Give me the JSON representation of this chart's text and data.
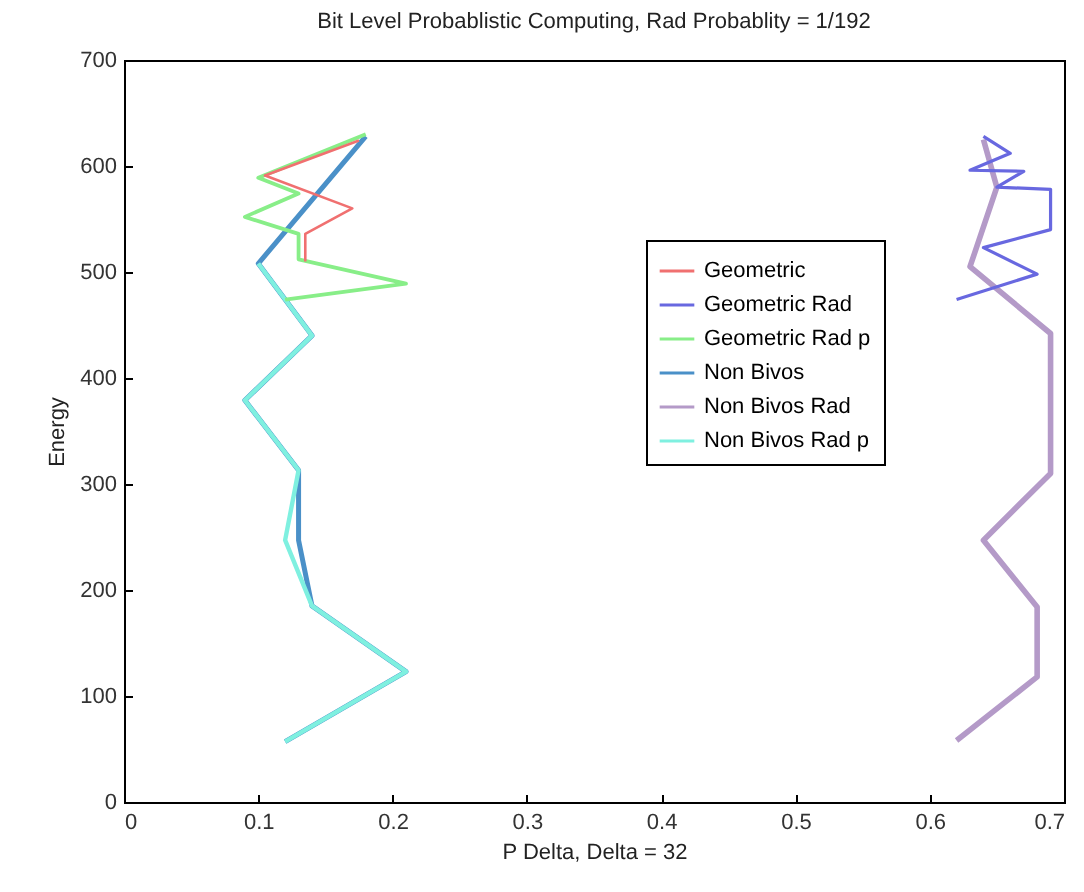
{
  "chart_data": {
    "type": "line",
    "title": "Bit Level Probablistic Computing, Rad  Probablity = 1/192",
    "xlabel": "P Delta, Delta = 32",
    "ylabel": "Energy",
    "xlim": [
      0,
      0.7
    ],
    "xticks": [
      0,
      0.1,
      0.2,
      0.3,
      0.4,
      0.5,
      0.6,
      0.7
    ],
    "ylim": [
      0,
      700
    ],
    "yticks": [
      0,
      100,
      200,
      300,
      400,
      500,
      600,
      700
    ],
    "grid": false,
    "legend": "top right",
    "marker": "none",
    "line_style": "solid",
    "series": [
      {
        "name": "Geometric",
        "color": "#f07070",
        "x": [
          0.135,
          0.135,
          0.17,
          0.105,
          0.175
        ],
        "values": [
          510,
          536,
          560,
          591,
          624
        ]
      },
      {
        "name": "Geometric Rad",
        "color": "#6868e0",
        "x": [
          0.62,
          0.68,
          0.64,
          0.69,
          0.69,
          0.65,
          0.67,
          0.63,
          0.66,
          0.64
        ],
        "values": [
          474,
          498,
          523,
          540,
          578,
          580,
          595,
          596,
          612,
          628
        ]
      },
      {
        "name": "Geometric Rad p",
        "color": "#88ee88",
        "x": [
          0.12,
          0.21,
          0.13,
          0.13,
          0.09,
          0.13,
          0.1,
          0.18
        ],
        "values": [
          474,
          489,
          512,
          536,
          552,
          574,
          589,
          630
        ]
      },
      {
        "name": "Non Bivos",
        "color": "#4a90c8",
        "x": [
          0.12,
          0.21,
          0.14,
          0.13,
          0.13,
          0.09,
          0.14,
          0.12,
          0.1,
          0.18
        ],
        "values": [
          57,
          123,
          185,
          247,
          313,
          379,
          440,
          474,
          508,
          628
        ]
      },
      {
        "name": "Non Bivos Rad",
        "color": "#b49ac8",
        "x": [
          0.62,
          0.68,
          0.68,
          0.64,
          0.69,
          0.69,
          0.63,
          0.65,
          0.64
        ],
        "values": [
          58,
          118,
          184,
          247,
          310,
          442,
          505,
          580,
          625
        ]
      },
      {
        "name": "Non Bivos Rad p",
        "color": "#7ff0e0",
        "x": [
          0.12,
          0.21,
          0.14,
          0.12,
          0.13,
          0.09,
          0.14,
          0.12,
          0.1
        ],
        "values": [
          57,
          123,
          185,
          247,
          313,
          379,
          440,
          474,
          508
        ]
      }
    ]
  }
}
